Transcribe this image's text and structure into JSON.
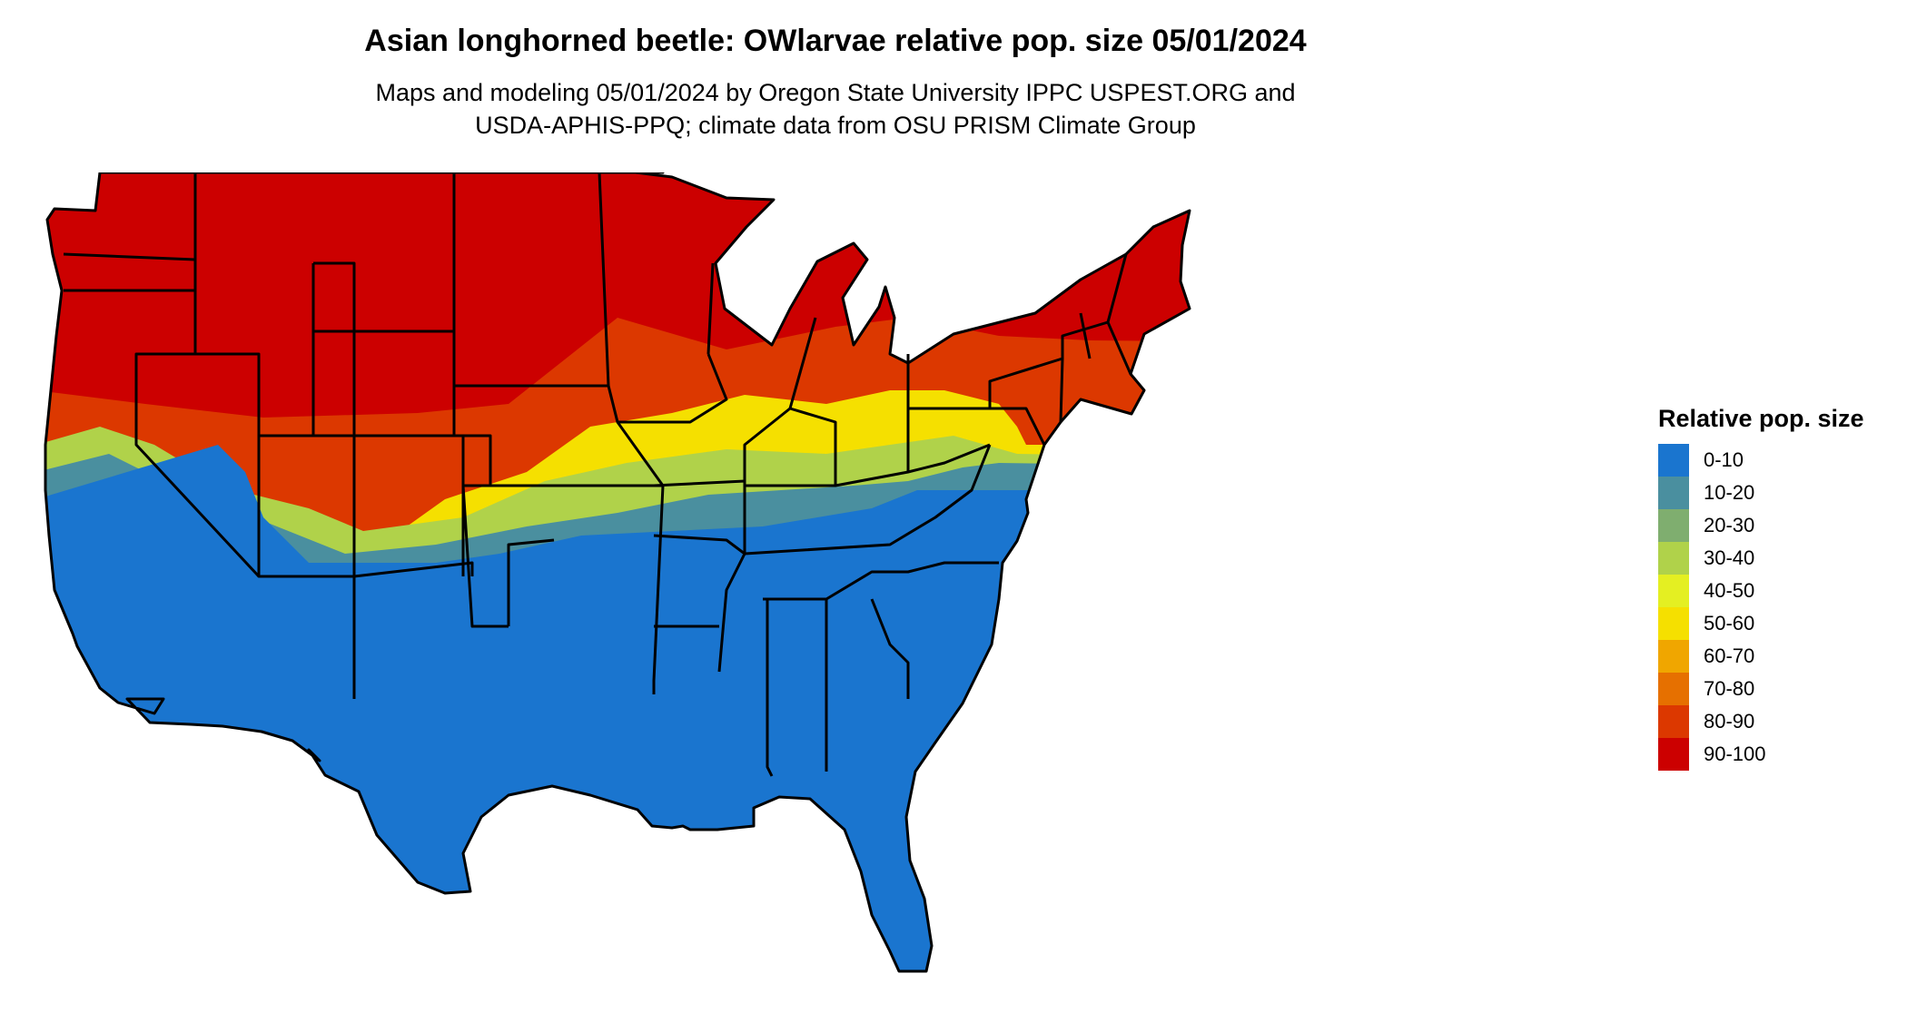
{
  "map": {
    "title": "Asian longhorned beetle: OWlarvae relative pop. size 05/01/2024",
    "subtitle_line1": "Maps and modeling 05/01/2024 by Oregon State University IPPC USPEST.ORG and",
    "subtitle_line2": "USDA-APHIS-PPQ; climate data from OSU PRISM Climate Group",
    "region": "Contiguous United States",
    "colors": {
      "background": "#ffffff",
      "state_border": "#000000"
    }
  },
  "legend": {
    "title": "Relative pop. size",
    "items": [
      {
        "label": "0-10",
        "color": "#1a75cf"
      },
      {
        "label": "10-20",
        "color": "#4a8f9f"
      },
      {
        "label": "20-30",
        "color": "#7fae6f"
      },
      {
        "label": "30-40",
        "color": "#b0d24a"
      },
      {
        "label": "40-50",
        "color": "#e4ef22"
      },
      {
        "label": "50-60",
        "color": "#f5e000"
      },
      {
        "label": "60-70",
        "color": "#f0a600"
      },
      {
        "label": "70-80",
        "color": "#e67000"
      },
      {
        "label": "80-90",
        "color": "#dc3800"
      },
      {
        "label": "90-100",
        "color": "#cc0000"
      }
    ]
  }
}
